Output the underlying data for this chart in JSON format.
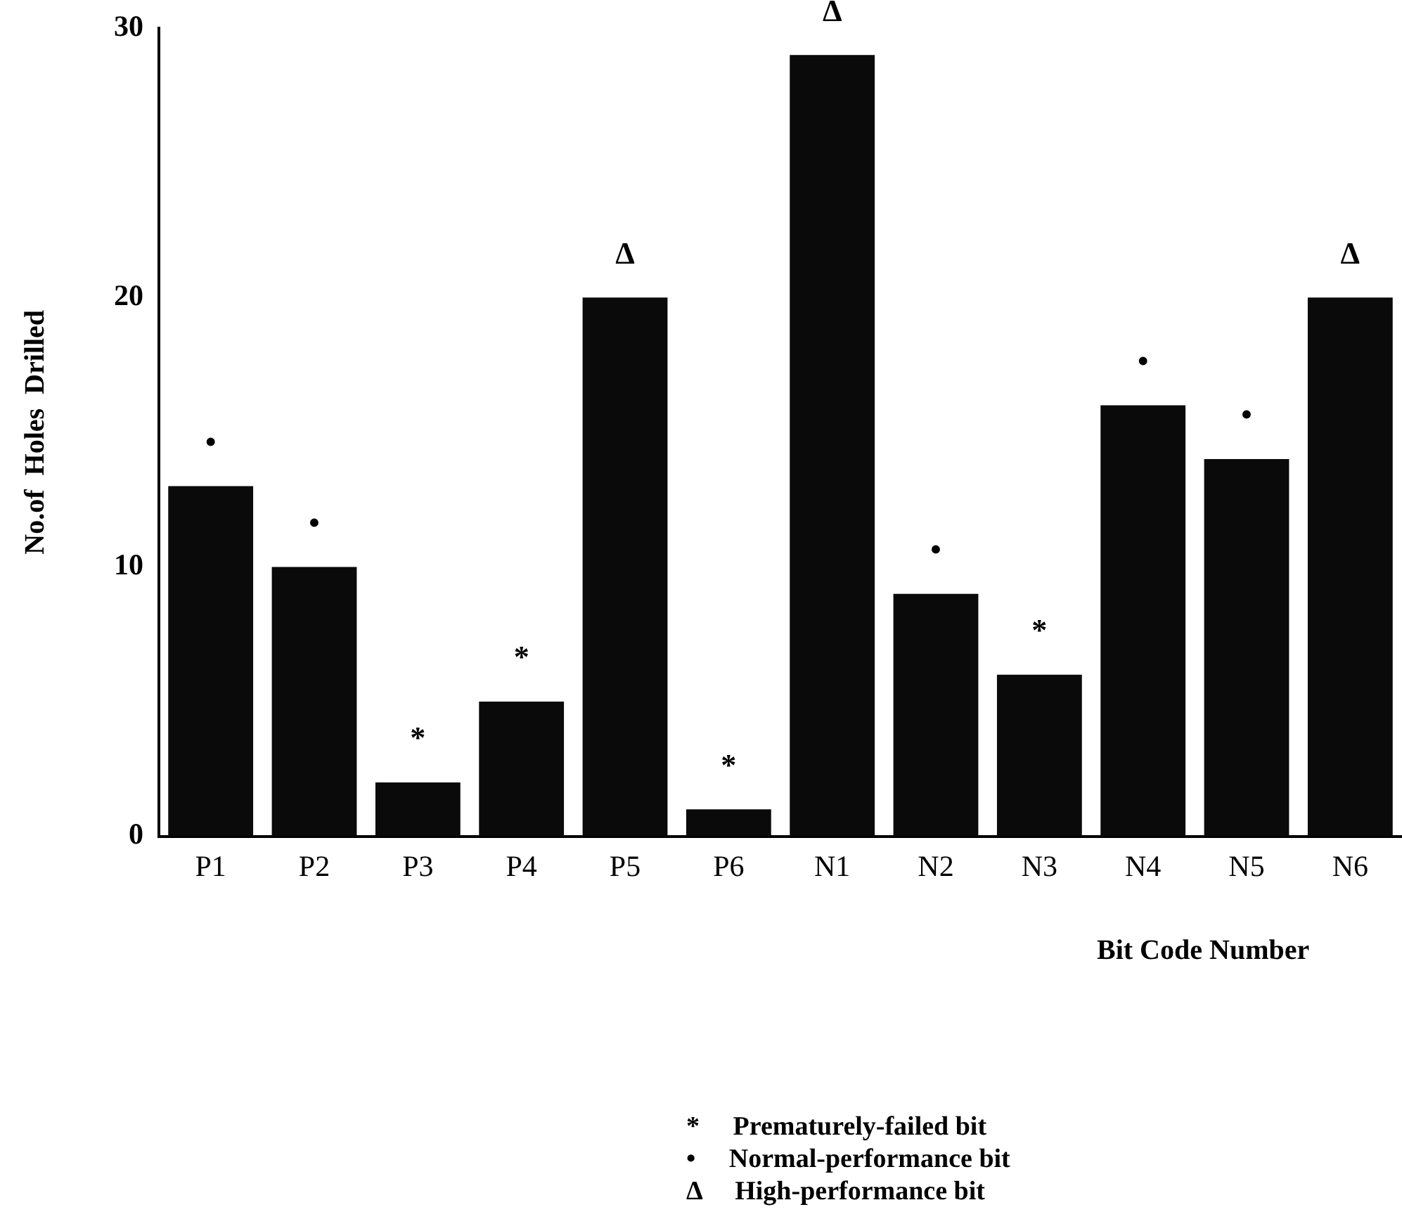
{
  "chart_data": {
    "type": "bar",
    "xlabel": "Bit Code Number",
    "ylabel": "No.of  Holes  Drilled",
    "categories": [
      "P1",
      "P2",
      "P3",
      "P4",
      "P5",
      "P6",
      "N1",
      "N2",
      "N3",
      "N4",
      "N5",
      "N6"
    ],
    "values": [
      13,
      10,
      2,
      5,
      20,
      1,
      29,
      9,
      6,
      16,
      14,
      20
    ],
    "color": "#0a0a0a",
    "ylim": [
      0,
      30
    ],
    "yticks": [
      0,
      10,
      20,
      30
    ],
    "grid": false,
    "legend": false,
    "annotations": [
      {
        "text": "•",
        "x": "P1",
        "y": 13
      },
      {
        "text": "•",
        "x": "P2",
        "y": 10
      },
      {
        "text": "*",
        "x": "P3",
        "y": 2
      },
      {
        "text": "*",
        "x": "P4",
        "y": 5
      },
      {
        "text": "Δ",
        "x": "P5",
        "y": 20
      },
      {
        "text": "*",
        "x": "P6",
        "y": 1
      },
      {
        "text": "Δ",
        "x": "N1",
        "y": 29
      },
      {
        "text": "•",
        "x": "N2",
        "y": 9
      },
      {
        "text": "*",
        "x": "N3",
        "y": 6
      },
      {
        "text": "•",
        "x": "N4",
        "y": 16
      },
      {
        "text": "•",
        "x": "N5",
        "y": 14
      },
      {
        "text": "Δ",
        "x": "N6",
        "y": 20
      },
      "*     Prematurely-failed bit",
      "•     Normal-performance bit",
      "Δ     High-performance bit"
    ]
  }
}
